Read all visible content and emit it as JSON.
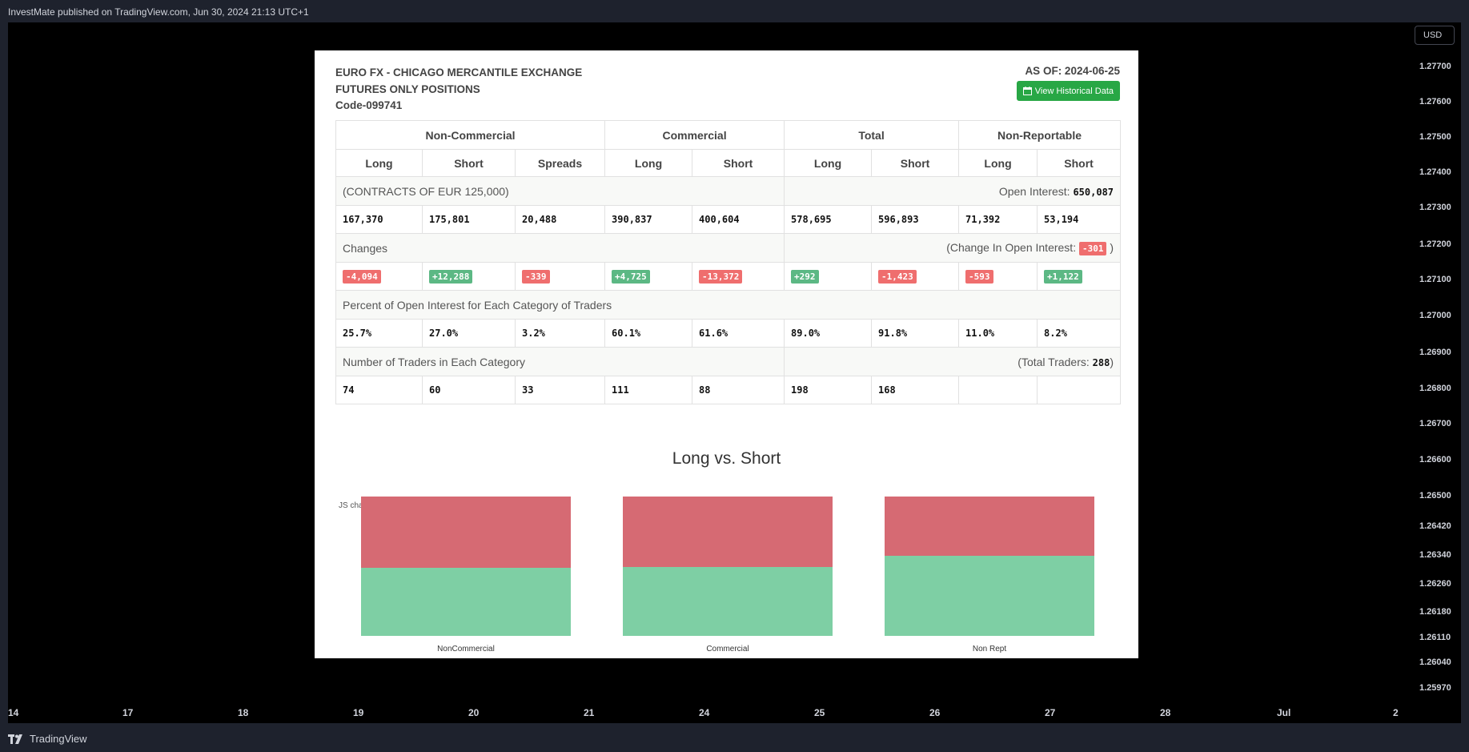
{
  "app": {
    "published_text": "InvestMate published on TradingView.com, Jun 30, 2024 21:13 UTC+1",
    "currency": "USD",
    "brand": "TradingView"
  },
  "price_scale": [
    "1.27700",
    "1.27600",
    "1.27500",
    "1.27400",
    "1.27300",
    "1.27200",
    "1.27100",
    "1.27000",
    "1.26900",
    "1.26800",
    "1.26700",
    "1.26600",
    "1.26500",
    "1.26420",
    "1.26340",
    "1.26260",
    "1.26180",
    "1.26110",
    "1.26040",
    "1.25970"
  ],
  "time_axis": [
    "14",
    "17",
    "18",
    "19",
    "20",
    "21",
    "24",
    "25",
    "26",
    "27",
    "28",
    "Jul",
    "2"
  ],
  "panel": {
    "title_line1": "EURO FX - CHICAGO MERCANTILE EXCHANGE",
    "title_line2": "FUTURES ONLY POSITIONS",
    "code": "Code-099741",
    "as_of": "AS OF: 2024-06-25",
    "history_button": "View Historical Data",
    "groups": [
      "Non-Commercial",
      "Commercial",
      "Total",
      "Non-Reportable"
    ],
    "subheaders": [
      "Long",
      "Short",
      "Spreads",
      "Long",
      "Short",
      "Long",
      "Short",
      "Long",
      "Short"
    ],
    "contracts_note": "(CONTRACTS OF EUR 125,000)",
    "open_interest_label": "Open Interest:",
    "open_interest_value": "650,087",
    "positions": [
      "167,370",
      "175,801",
      "20,488",
      "390,837",
      "400,604",
      "578,695",
      "596,893",
      "71,392",
      "53,194"
    ],
    "changes_label": "Changes",
    "change_oi_label": "(Change In Open Interest:",
    "change_oi_value": "-301",
    "change_oi_close": ")",
    "changes": [
      "-4,094",
      "+12,288",
      "-339",
      "+4,725",
      "-13,372",
      "+292",
      "-1,423",
      "-593",
      "+1,122"
    ],
    "percent_label": "Percent of Open Interest for Each Category of Traders",
    "percents": [
      "25.7%",
      "27.0%",
      "3.2%",
      "60.1%",
      "61.6%",
      "89.0%",
      "91.8%",
      "11.0%",
      "8.2%"
    ],
    "traders_label": "Number of Traders in Each Category",
    "total_traders_label": "(Total Traders:",
    "total_traders_value": "288",
    "total_traders_close": ")",
    "traders": [
      "74",
      "60",
      "33",
      "111",
      "88",
      "198",
      "168",
      "",
      ""
    ]
  },
  "chart_data": {
    "type": "bar",
    "stacked": "100%",
    "title": "Long vs. Short",
    "credit": "JS chart by amCharts",
    "categories": [
      "NonCommercial",
      "Commercial",
      "Non Rept"
    ],
    "series": [
      {
        "name": "Long",
        "color": "#7ecfa4",
        "values": [
          167370,
          390837,
          71392
        ]
      },
      {
        "name": "Short",
        "color": "#d66a73",
        "values": [
          175801,
          400604,
          53194
        ]
      }
    ]
  }
}
